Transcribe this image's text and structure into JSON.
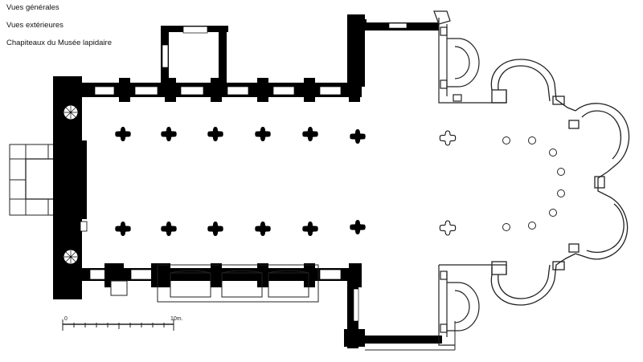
{
  "nav": {
    "links": [
      {
        "label": "Vues générales"
      },
      {
        "label": "Vues extérieures"
      },
      {
        "label": "Chapiteaux du Musée lapidaire"
      }
    ]
  },
  "scale": {
    "start_label": "0",
    "end_label": "10m."
  },
  "colors": {
    "wall": "#000000",
    "line": "#222222",
    "background": "#ffffff"
  }
}
